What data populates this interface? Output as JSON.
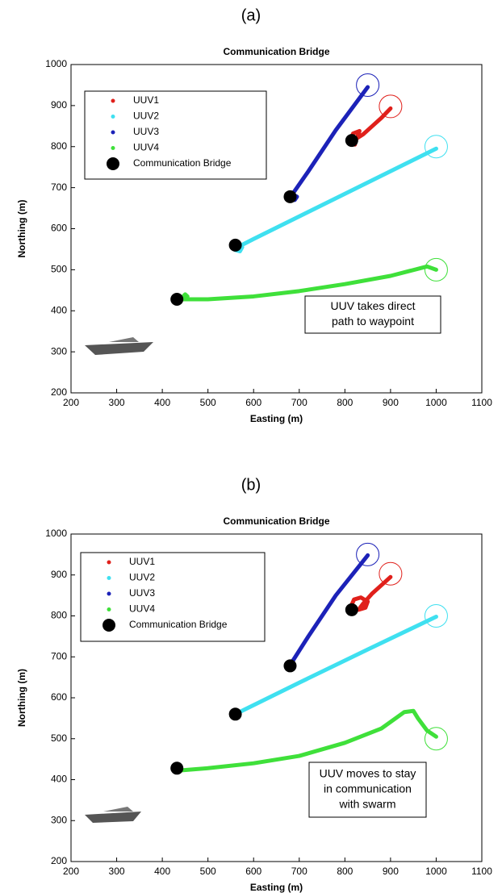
{
  "chart_data": [
    {
      "type": "line",
      "panel": "(a)",
      "title": "Communication Bridge",
      "x_label": "Easting (m)",
      "y_label": "Northing (m)",
      "xlim": [
        200,
        1100
      ],
      "ylim": [
        200,
        1000
      ],
      "xticks": [
        200,
        300,
        400,
        500,
        600,
        700,
        800,
        900,
        1000,
        1100
      ],
      "yticks": [
        200,
        300,
        400,
        500,
        600,
        700,
        800,
        900,
        1000
      ],
      "series": [
        {
          "name": "UUV1",
          "color": "#e0201b",
          "x": [
            822,
            812,
            818,
            832,
            826,
            840,
            860,
            880,
            900
          ],
          "values": [
            805,
            815,
            832,
            838,
            820,
            830,
            850,
            870,
            893
          ]
        },
        {
          "name": "UUV2",
          "color": "#3fe0f0",
          "x": [
            560,
            570,
            575,
            565,
            600,
            700,
            800,
            900,
            1000
          ],
          "values": [
            548,
            545,
            555,
            555,
            575,
            630,
            685,
            740,
            795
          ]
        },
        {
          "name": "UUV3",
          "color": "#1c22b8",
          "x": [
            690,
            695,
            688,
            680,
            720,
            780,
            850
          ],
          "values": [
            670,
            678,
            682,
            676,
            740,
            840,
            945
          ]
        },
        {
          "name": "UUV4",
          "color": "#3fe03a",
          "x": [
            445,
            455,
            450,
            440,
            500,
            600,
            700,
            800,
            900,
            980,
            1000
          ],
          "values": [
            430,
            435,
            440,
            428,
            428,
            435,
            448,
            465,
            485,
            508,
            500
          ]
        }
      ],
      "bridge": {
        "name": "Communication Bridge",
        "color": "#000000",
        "x": [
          432,
          560,
          680,
          815
        ],
        "values": [
          428,
          560,
          678,
          815
        ]
      },
      "waypoints": {
        "colors": [
          "#e0201b",
          "#3fe0f0",
          "#1c22b8",
          "#3fe03a"
        ],
        "x": [
          900,
          1000,
          850,
          1000
        ],
        "values": [
          898,
          800,
          950,
          500
        ]
      },
      "annotation": [
        "UUV takes direct",
        "path to waypoint"
      ]
    },
    {
      "type": "line",
      "panel": "(b)",
      "title": "Communication Bridge",
      "x_label": "Easting (m)",
      "y_label": "Northing (m)",
      "xlim": [
        200,
        1100
      ],
      "ylim": [
        200,
        1000
      ],
      "xticks": [
        200,
        300,
        400,
        500,
        600,
        700,
        800,
        900,
        1000,
        1100
      ],
      "yticks": [
        200,
        300,
        400,
        500,
        600,
        700,
        800,
        900,
        1000
      ],
      "series": [
        {
          "name": "UUV1",
          "color": "#e0201b",
          "x": [
            812,
            820,
            835,
            850,
            845,
            830,
            840,
            860,
            880,
            900
          ],
          "values": [
            820,
            840,
            845,
            835,
            820,
            815,
            830,
            855,
            875,
            895
          ]
        },
        {
          "name": "UUV2",
          "color": "#3fe0f0",
          "x": [
            560,
            700,
            850,
            1000
          ],
          "values": [
            560,
            637,
            718,
            798
          ]
        },
        {
          "name": "UUV3",
          "color": "#1c22b8",
          "x": [
            680,
            720,
            780,
            850
          ],
          "values": [
            680,
            750,
            850,
            948
          ]
        },
        {
          "name": "UUV4",
          "color": "#3fe03a",
          "x": [
            432,
            500,
            600,
            700,
            800,
            880,
            930,
            950,
            960,
            980,
            1000
          ],
          "values": [
            422,
            428,
            440,
            458,
            490,
            525,
            565,
            568,
            550,
            520,
            505
          ]
        }
      ],
      "bridge": {
        "name": "Communication Bridge",
        "color": "#000000",
        "x": [
          432,
          560,
          680,
          815
        ],
        "values": [
          428,
          560,
          678,
          815
        ]
      },
      "waypoints": {
        "colors": [
          "#e0201b",
          "#3fe0f0",
          "#1c22b8",
          "#3fe03a"
        ],
        "x": [
          900,
          1000,
          850,
          1000
        ],
        "values": [
          903,
          800,
          950,
          500
        ]
      },
      "annotation": [
        "UUV moves to stay",
        "in communication",
        "with swarm"
      ]
    }
  ]
}
